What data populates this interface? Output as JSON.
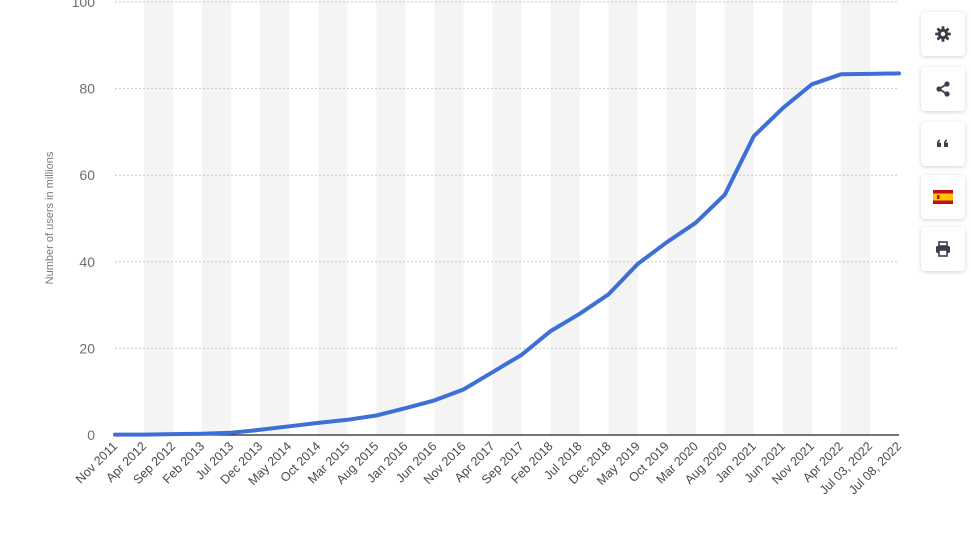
{
  "toolbar": {
    "buttons": [
      {
        "icon": "gear-icon"
      },
      {
        "icon": "share-icon"
      },
      {
        "icon": "quote-icon"
      },
      {
        "icon": "spain-flag-icon"
      },
      {
        "icon": "print-icon"
      }
    ]
  },
  "chart_data": {
    "type": "line",
    "xlabel": "",
    "ylabel": "Number of users in millions",
    "ylim": [
      0,
      100
    ],
    "yticks": [
      0,
      20,
      40,
      60,
      80,
      100
    ],
    "grid": true,
    "color": "#3d6fd6",
    "x": [
      "Nov 2011",
      "Apr 2012",
      "Sep 2012",
      "Feb 2013",
      "Jul 2013",
      "Dec 2013",
      "May 2014",
      "Oct 2014",
      "Mar 2015",
      "Aug 2015",
      "Jan 2016",
      "Jun 2016",
      "Nov 2016",
      "Apr 2017",
      "Sep 2017",
      "Feb 2018",
      "Jul 2018",
      "Dec 2018",
      "May 2019",
      "Oct 2019",
      "Mar 2020",
      "Aug 2020",
      "Jan 2021",
      "Jun 2021",
      "Nov 2021",
      "Apr 2022",
      "Jul 03, 2022",
      "Jul 08, 2022"
    ],
    "series": [
      {
        "values": [
          0.1,
          0.1,
          0.2,
          0.3,
          0.5,
          1.2,
          2.0,
          2.8,
          3.5,
          4.5,
          6.2,
          8.0,
          10.5,
          14.5,
          18.5,
          24.0,
          28.0,
          32.5,
          39.5,
          44.5,
          49.0,
          55.5,
          69.0,
          75.5,
          81.0,
          83.3,
          83.4,
          83.5
        ]
      }
    ]
  }
}
